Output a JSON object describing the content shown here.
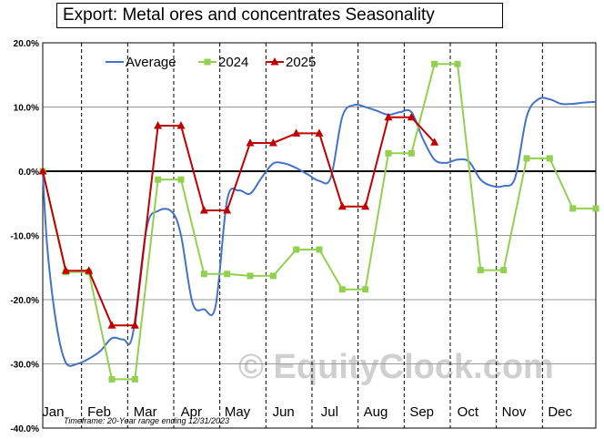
{
  "chart_data": {
    "type": "line",
    "title": "Export: Metal ores and concentrates Seasonality",
    "categories": [
      "Jan",
      "Feb",
      "Mar",
      "Apr",
      "May",
      "Jun",
      "Jul",
      "Aug",
      "Sep",
      "Oct",
      "Nov",
      "Dec"
    ],
    "y_ticks": [
      "20.0%",
      "10.0%",
      "0.0%",
      "-10.0%",
      "-20.0%",
      "-30.0%",
      "-40.0%"
    ],
    "ylim": [
      -40,
      20
    ],
    "xlim": [
      0,
      12
    ],
    "grid": true,
    "legend_position": "top-left",
    "series": [
      {
        "name": "Average",
        "color": "#4472c4",
        "marker": "none",
        "x": [
          0,
          0.1,
          0.3,
          0.5,
          0.75,
          1.0,
          1.25,
          1.5,
          1.75,
          1.95,
          2.25,
          2.5,
          2.8,
          3.0,
          3.25,
          3.5,
          3.75,
          4.0,
          4.25,
          4.5,
          4.75,
          5.0,
          5.25,
          5.5,
          5.75,
          6.0,
          6.25,
          6.5,
          6.75,
          7.0,
          7.25,
          7.5,
          7.75,
          8.0,
          8.25,
          8.5,
          8.75,
          9.0,
          9.25,
          9.5,
          9.75,
          10.0,
          10.25,
          10.5,
          10.75,
          11.0,
          11.25,
          11.5,
          11.75,
          12.0
        ],
        "values": [
          0,
          -12,
          -24,
          -29.8,
          -30,
          -29.2,
          -28,
          -26,
          -26.2,
          -25.5,
          -9,
          -6.2,
          -6.3,
          -10,
          -20.5,
          -21.5,
          -21,
          -4.5,
          -3,
          -3.5,
          -1,
          1.2,
          1.2,
          0.5,
          -0.5,
          -1.5,
          -1,
          8.5,
          10.3,
          10,
          9.4,
          8.8,
          9.2,
          9.2,
          5,
          1.8,
          1.3,
          1.8,
          1.5,
          -1.3,
          -2.3,
          -2.3,
          -1,
          8.5,
          11.2,
          11.2,
          10.5,
          10.5,
          10.7,
          10.8
        ]
      },
      {
        "name": "2024",
        "color": "#92d050",
        "marker": "square",
        "x": [
          0,
          0.5,
          1.0,
          1.5,
          2.0,
          2.5,
          3.0,
          3.5,
          4.0,
          4.5,
          5.0,
          5.5,
          6.0,
          6.5,
          7.0,
          7.5,
          8.0,
          8.5,
          9.0,
          9.5,
          10.0,
          10.5,
          11.0,
          11.5,
          12.0
        ],
        "values": [
          0,
          -15.7,
          -15.7,
          -32.4,
          -32.4,
          -1.3,
          -1.3,
          -16.0,
          -16.0,
          -16.3,
          -16.3,
          -12.2,
          -12.2,
          -18.4,
          -18.4,
          2.8,
          2.8,
          16.7,
          16.7,
          -15.4,
          -15.4,
          2.0,
          2.0,
          -5.8,
          -5.8
        ]
      },
      {
        "name": "2025",
        "color": "#c00000",
        "marker": "triangle",
        "x": [
          0,
          0.5,
          1.0,
          1.5,
          2.0,
          2.5,
          3.0,
          3.5,
          4.0,
          4.5,
          5.0,
          5.5,
          6.0,
          6.5,
          7.0,
          7.5,
          8.0,
          8.5
        ],
        "values": [
          0,
          -15.5,
          -15.5,
          -24.0,
          -24.0,
          7.1,
          7.1,
          -6.1,
          -6.1,
          4.4,
          4.4,
          5.9,
          5.9,
          -5.5,
          -5.5,
          8.4,
          8.4,
          4.5
        ]
      }
    ],
    "footnote": "Timeframe: 20-Year range ending 12/31/2023",
    "watermark": "© EquityClock.com"
  }
}
